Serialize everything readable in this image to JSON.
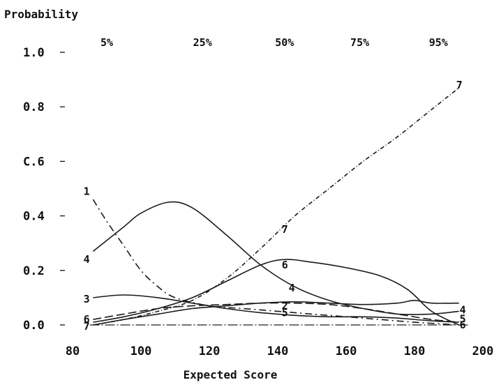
{
  "chart_data": {
    "type": "line",
    "xlabel": "Expected Score",
    "ylabel": "Probability",
    "xlim": [
      80,
      200
    ],
    "ylim": [
      0.0,
      1.0
    ],
    "x_ticks": [
      {
        "value": 80,
        "label": "80"
      },
      {
        "value": 100,
        "label": "100"
      },
      {
        "value": 120,
        "label": "120"
      },
      {
        "value": 140,
        "label": "140"
      },
      {
        "value": 160,
        "label": "160"
      },
      {
        "value": 180,
        "label": "180"
      },
      {
        "value": 200,
        "label": "200"
      }
    ],
    "y_ticks": [
      {
        "value": 0.0,
        "label": "0.0"
      },
      {
        "value": 0.2,
        "label": "0.2"
      },
      {
        "value": 0.4,
        "label": "0.4"
      },
      {
        "value": 0.6,
        "label": "C.6"
      },
      {
        "value": 0.8,
        "label": "0.8"
      },
      {
        "value": 1.0,
        "label": "1.0"
      }
    ],
    "percentile_labels": [
      {
        "x": 90,
        "label": "5%"
      },
      {
        "x": 118,
        "label": "25%"
      },
      {
        "x": 142,
        "label": "50%"
      },
      {
        "x": 164,
        "label": "75%"
      },
      {
        "x": 187,
        "label": "95%"
      }
    ],
    "grid": false,
    "series": [
      {
        "name": "1",
        "dash": "10 5 2 5",
        "label_x": 84,
        "label_y": 0.49,
        "x": [
          86,
          90,
          95,
          100,
          105,
          110,
          120,
          130,
          140,
          150,
          160,
          170,
          180,
          193
        ],
        "y": [
          0.46,
          0.38,
          0.29,
          0.2,
          0.14,
          0.1,
          0.07,
          0.06,
          0.05,
          0.04,
          0.03,
          0.02,
          0.01,
          0.0
        ]
      },
      {
        "name": "2",
        "dash": "12 5",
        "label_x": 142,
        "label_y": 0.07,
        "x": [
          86,
          95,
          105,
          115,
          125,
          135,
          145,
          155,
          165,
          175,
          185,
          193
        ],
        "y": [
          0.02,
          0.04,
          0.06,
          0.07,
          0.075,
          0.08,
          0.08,
          0.075,
          0.06,
          0.04,
          0.02,
          0.01
        ]
      },
      {
        "name": "3",
        "dash": "",
        "label_x": 84,
        "label_y": 0.095,
        "x": [
          86,
          95,
          105,
          115,
          125,
          135,
          145,
          155,
          165,
          175,
          185,
          193
        ],
        "y": [
          0.1,
          0.11,
          0.1,
          0.08,
          0.06,
          0.045,
          0.035,
          0.03,
          0.03,
          0.025,
          0.015,
          0.01
        ]
      },
      {
        "name": "4",
        "dash": "",
        "label_x": 84,
        "label_y": 0.24,
        "x": [
          86,
          95,
          100,
          108,
          115,
          125,
          135,
          145,
          155,
          165,
          175,
          185,
          193
        ],
        "y": [
          0.27,
          0.36,
          0.41,
          0.45,
          0.43,
          0.33,
          0.22,
          0.14,
          0.09,
          0.06,
          0.04,
          0.04,
          0.05
        ]
      },
      {
        "name": "5",
        "dash": "",
        "label_x": 142,
        "label_y": 0.045,
        "x": [
          86,
          95,
          105,
          115,
          125,
          135,
          145,
          155,
          165,
          175,
          180,
          185,
          193
        ],
        "y": [
          0.0,
          0.02,
          0.04,
          0.06,
          0.07,
          0.08,
          0.085,
          0.08,
          0.075,
          0.08,
          0.09,
          0.08,
          0.08
        ]
      },
      {
        "name": "6",
        "dash": "",
        "label_x": 142,
        "label_y": 0.22,
        "x": [
          86,
          95,
          105,
          115,
          125,
          135,
          142,
          150,
          160,
          170,
          178,
          185,
          193
        ],
        "y": [
          0.01,
          0.03,
          0.06,
          0.1,
          0.16,
          0.22,
          0.24,
          0.23,
          0.21,
          0.18,
          0.13,
          0.05,
          0.0
        ]
      },
      {
        "name": "7",
        "dash": "6 3 1 3",
        "label_x": 142,
        "label_y": 0.35,
        "x": [
          86,
          95,
          105,
          115,
          125,
          135,
          145,
          155,
          165,
          175,
          185,
          193
        ],
        "y": [
          0.0,
          0.02,
          0.05,
          0.09,
          0.17,
          0.28,
          0.4,
          0.5,
          0.6,
          0.69,
          0.79,
          0.87
        ]
      }
    ],
    "extra_labels": [
      {
        "label": "4",
        "x": 144,
        "y": 0.135
      },
      {
        "label": "7",
        "x": 193,
        "y": 0.88
      },
      {
        "label": "4",
        "x": 194,
        "y": 0.055
      },
      {
        "label": "5",
        "x": 194,
        "y": 0.022
      },
      {
        "label": "6",
        "x": 194,
        "y": 0.0
      },
      {
        "label": "6",
        "x": 84,
        "y": 0.02
      },
      {
        "label": "7",
        "x": 84,
        "y": -0.005
      }
    ]
  }
}
